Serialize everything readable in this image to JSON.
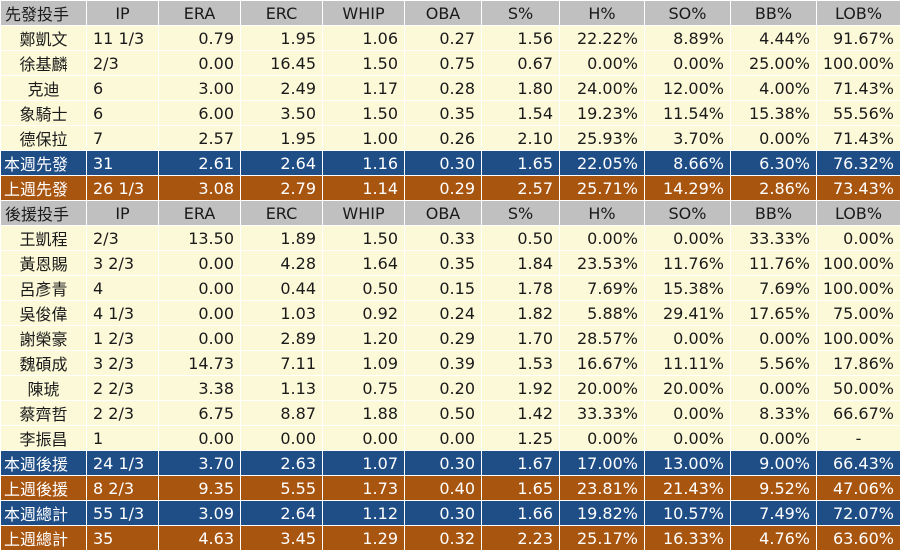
{
  "starters": {
    "header": [
      "先發投手",
      "IP",
      "ERA",
      "ERC",
      "WHIP",
      "OBA",
      "S%",
      "H%",
      "SO%",
      "BB%",
      "LOB%"
    ],
    "rows": [
      [
        "鄭凱文",
        "11 1/3",
        "0.79",
        "1.95",
        "1.06",
        "0.27",
        "1.56",
        "22.22%",
        "8.89%",
        "4.44%",
        "91.67%"
      ],
      [
        "徐基麟",
        "2/3",
        "0.00",
        "16.45",
        "1.50",
        "0.75",
        "0.67",
        "0.00%",
        "0.00%",
        "25.00%",
        "100.00%"
      ],
      [
        "克迪",
        "6",
        "3.00",
        "2.49",
        "1.17",
        "0.28",
        "1.80",
        "24.00%",
        "12.00%",
        "4.00%",
        "71.43%"
      ],
      [
        "象騎士",
        "6",
        "6.00",
        "3.50",
        "1.50",
        "0.35",
        "1.54",
        "19.23%",
        "11.54%",
        "15.38%",
        "55.56%"
      ],
      [
        "德保拉",
        "7",
        "2.57",
        "1.95",
        "1.00",
        "0.26",
        "2.10",
        "25.93%",
        "3.70%",
        "0.00%",
        "71.43%"
      ]
    ],
    "this_week": [
      "本週先發",
      "31",
      "2.61",
      "2.64",
      "1.16",
      "0.30",
      "1.65",
      "22.05%",
      "8.66%",
      "6.30%",
      "76.32%"
    ],
    "last_week": [
      "上週先發",
      "26 1/3",
      "3.08",
      "2.79",
      "1.14",
      "0.29",
      "2.57",
      "25.71%",
      "14.29%",
      "2.86%",
      "73.43%"
    ]
  },
  "relievers": {
    "header": [
      "後援投手",
      "IP",
      "ERA",
      "ERC",
      "WHIP",
      "OBA",
      "S%",
      "H%",
      "SO%",
      "BB%",
      "LOB%"
    ],
    "rows": [
      [
        "王凱程",
        "2/3",
        "13.50",
        "1.89",
        "1.50",
        "0.33",
        "0.50",
        "0.00%",
        "0.00%",
        "33.33%",
        "0.00%"
      ],
      [
        "黃恩賜",
        "3 2/3",
        "0.00",
        "4.28",
        "1.64",
        "0.35",
        "1.84",
        "23.53%",
        "11.76%",
        "11.76%",
        "100.00%"
      ],
      [
        "呂彥青",
        "4",
        "0.00",
        "0.44",
        "0.50",
        "0.15",
        "1.78",
        "7.69%",
        "15.38%",
        "7.69%",
        "100.00%"
      ],
      [
        "吳俊偉",
        "4 1/3",
        "0.00",
        "1.03",
        "0.92",
        "0.24",
        "1.82",
        "5.88%",
        "29.41%",
        "17.65%",
        "75.00%"
      ],
      [
        "謝榮豪",
        "1 2/3",
        "0.00",
        "2.89",
        "1.20",
        "0.29",
        "1.70",
        "28.57%",
        "0.00%",
        "0.00%",
        "100.00%"
      ],
      [
        "魏碩成",
        "3 2/3",
        "14.73",
        "7.11",
        "1.09",
        "0.39",
        "1.53",
        "16.67%",
        "11.11%",
        "5.56%",
        "17.86%"
      ],
      [
        "陳琥",
        "2 2/3",
        "3.38",
        "1.13",
        "0.75",
        "0.20",
        "1.92",
        "20.00%",
        "20.00%",
        "0.00%",
        "50.00%"
      ],
      [
        "蔡齊哲",
        "2 2/3",
        "6.75",
        "8.87",
        "1.88",
        "0.50",
        "1.42",
        "33.33%",
        "0.00%",
        "8.33%",
        "66.67%"
      ],
      [
        "李振昌",
        "1",
        "0.00",
        "0.00",
        "0.00",
        "0.00",
        "1.25",
        "0.00%",
        "0.00%",
        "0.00%",
        "-"
      ]
    ],
    "this_week": [
      "本週後援",
      "24 1/3",
      "3.70",
      "2.63",
      "1.07",
      "0.30",
      "1.67",
      "17.00%",
      "13.00%",
      "9.00%",
      "66.43%"
    ],
    "last_week": [
      "上週後援",
      "8 2/3",
      "9.35",
      "5.55",
      "1.73",
      "0.40",
      "1.65",
      "23.81%",
      "21.43%",
      "9.52%",
      "47.06%"
    ]
  },
  "totals": {
    "this_week": [
      "本週總計",
      "55 1/3",
      "3.09",
      "2.64",
      "1.12",
      "0.30",
      "1.66",
      "19.82%",
      "10.57%",
      "7.49%",
      "72.07%"
    ],
    "last_week": [
      "上週總計",
      "35",
      "4.63",
      "3.45",
      "1.29",
      "0.32",
      "2.23",
      "25.17%",
      "16.33%",
      "4.76%",
      "63.60%"
    ]
  },
  "colors": {
    "header_bg": "#c0c0c0",
    "body_bg": "#fcf9d8",
    "this_week_bg": "#1f4e87",
    "last_week_bg": "#a85510"
  }
}
